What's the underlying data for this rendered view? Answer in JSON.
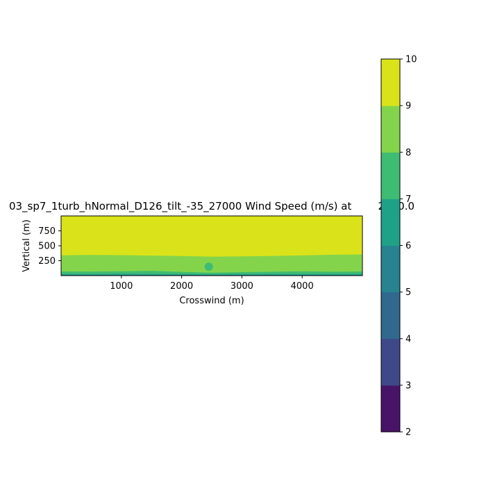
{
  "chart_data": {
    "type": "contourf",
    "title": "03_sp7_1turb_hNormal_D126_tilt_-35_27000 Wind Speed (m/s) at        2500.0",
    "xlabel": "Crosswind (m)",
    "ylabel": "Vertical (m)",
    "xlim": [
      0,
      5000
    ],
    "ylim": [
      0,
      1000
    ],
    "xticks": [
      1000,
      2000,
      3000,
      4000
    ],
    "yticks": [
      250,
      500,
      750
    ],
    "colorbar": {
      "levels": [
        2,
        3,
        4,
        5,
        6,
        7,
        8,
        9,
        10
      ],
      "tick_labels": [
        "2",
        "3",
        "4",
        "5",
        "6",
        "7",
        "8",
        "9",
        "10"
      ],
      "colors": [
        "#481467",
        "#3f4889",
        "#31688e",
        "#26838f",
        "#1fa187",
        "#3fbc73",
        "#84d44b",
        "#dae319"
      ],
      "colormap": "viridis"
    },
    "regions": [
      {
        "level_range": [
          9,
          10
        ],
        "color": "#dae319",
        "boundary_heights_m": [
          [
            0,
            340
          ],
          [
            500,
            348
          ],
          [
            1000,
            343
          ],
          [
            1500,
            336
          ],
          [
            2000,
            328
          ],
          [
            2500,
            318
          ],
          [
            3000,
            322
          ],
          [
            3500,
            330
          ],
          [
            4000,
            338
          ],
          [
            4500,
            350
          ],
          [
            5000,
            355
          ]
        ]
      },
      {
        "level_range": [
          8,
          9
        ],
        "color": "#84d44b",
        "boundary_heights_m": [
          [
            0,
            70
          ],
          [
            500,
            68
          ],
          [
            1000,
            73
          ],
          [
            1500,
            80
          ],
          [
            2000,
            62
          ],
          [
            2500,
            50
          ],
          [
            3000,
            58
          ],
          [
            3500,
            65
          ],
          [
            4000,
            72
          ],
          [
            4500,
            66
          ],
          [
            5000,
            70
          ]
        ]
      },
      {
        "level_range": [
          7,
          8
        ],
        "color": "#3fbc73",
        "boundary_heights_m": [
          [
            0,
            28
          ],
          [
            500,
            25
          ],
          [
            1000,
            30
          ],
          [
            1500,
            27
          ],
          [
            2000,
            24
          ],
          [
            2500,
            22
          ],
          [
            3000,
            26
          ],
          [
            3500,
            28
          ],
          [
            4000,
            25
          ],
          [
            4500,
            27
          ],
          [
            5000,
            28
          ]
        ]
      },
      {
        "level_range": [
          6,
          7
        ],
        "color": "#1fa187",
        "boundary_heights_m": [
          [
            0,
            8
          ],
          [
            5000,
            8
          ]
        ]
      }
    ],
    "wake": {
      "level_range": [
        7,
        8
      ],
      "color": "#3fbc73",
      "center": [
        2450,
        150
      ],
      "radius_m": [
        70,
        70
      ]
    }
  }
}
